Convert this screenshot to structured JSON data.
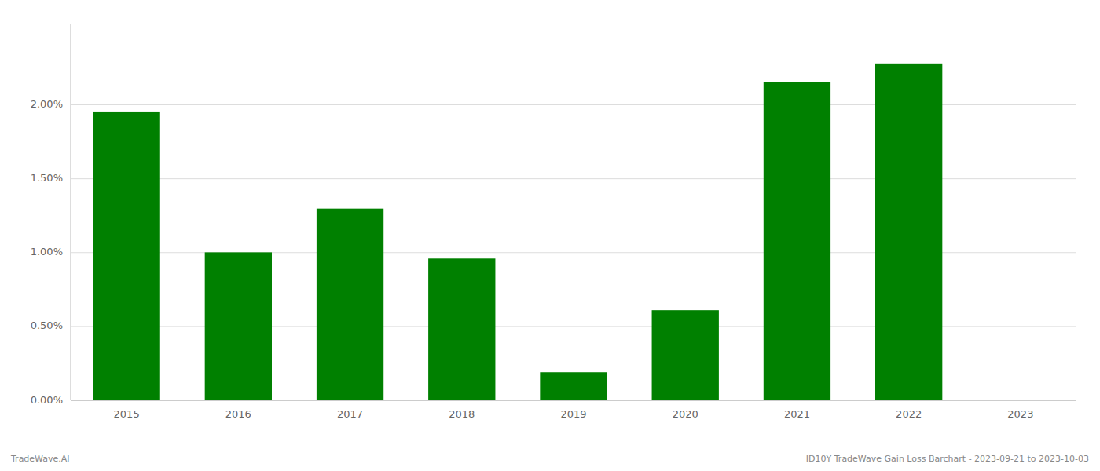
{
  "chart_data": {
    "type": "bar",
    "categories": [
      "2015",
      "2016",
      "2017",
      "2018",
      "2019",
      "2020",
      "2021",
      "2022",
      "2023"
    ],
    "values": [
      0.0195,
      0.01002,
      0.01298,
      0.0096,
      0.0019,
      0.0061,
      0.02152,
      0.0228,
      null
    ],
    "color": "#008000",
    "ylim": [
      0,
      0.0255
    ],
    "yticks": [
      {
        "value": 0.0,
        "label": "0.00%"
      },
      {
        "value": 0.005,
        "label": "0.50%"
      },
      {
        "value": 0.01,
        "label": "1.00%"
      },
      {
        "value": 0.015,
        "label": "1.50%"
      },
      {
        "value": 0.02,
        "label": "2.00%"
      }
    ],
    "grid": true,
    "annotations": [
      "TradeWave.AI",
      "ID10Y TradeWave Gain Loss Barchart - 2023-09-21 to 2023-10-03"
    ]
  }
}
